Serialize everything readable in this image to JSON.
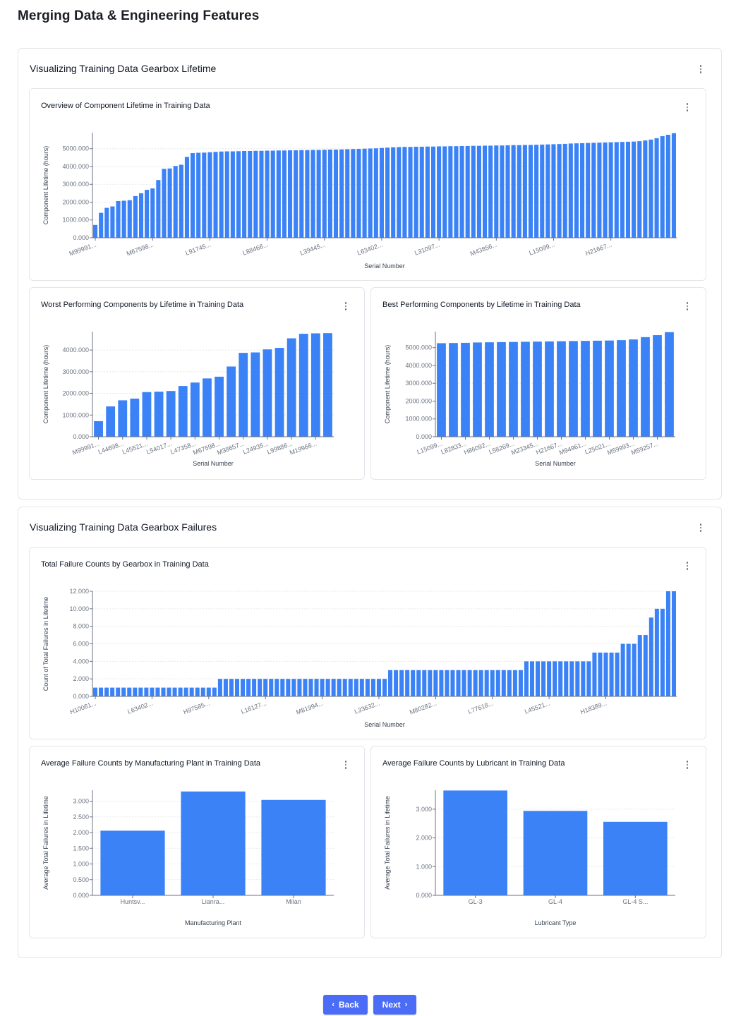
{
  "page": {
    "title": "Merging Data & Engineering Features"
  },
  "sections": [
    {
      "title": "Visualizing Training Data Gearbox Lifetime"
    },
    {
      "title": "Visualizing Training Data Gearbox Failures"
    }
  ],
  "cards": {
    "overview": {
      "title": "Overview of Component Lifetime in Training Data"
    },
    "worst": {
      "title": "Worst Performing Components by Lifetime in Training Data"
    },
    "best": {
      "title": "Best Performing Components by Lifetime in Training Data"
    },
    "failures": {
      "title": "Total Failure Counts by Gearbox in Training Data"
    },
    "plant": {
      "title": "Average Failure Counts by Manufacturing Plant in Training Data"
    },
    "lubricant": {
      "title": "Average Failure Counts by Lubricant in Training Data"
    }
  },
  "nav": {
    "back_label": "Back",
    "next_label": "Next"
  },
  "colors": {
    "bar": "#3b82f6",
    "grid": "#e5e7eb",
    "axis": "#6b7280"
  },
  "chart_data": [
    {
      "id": "overview",
      "type": "bar",
      "title": "Overview of Component Lifetime in Training Data",
      "xlabel": "Serial Number",
      "ylabel": "Component Lifetime (hours)",
      "ylim": [
        0,
        5900
      ],
      "yticks": [
        0,
        1000,
        2000,
        3000,
        4000,
        5000
      ],
      "ytick_labels": [
        "0.000",
        "1000.000",
        "2000.000",
        "3000.000",
        "4000.000",
        "5000.000"
      ],
      "xtick_labels": [
        "M99991...",
        "M67598...",
        "L91745...",
        "L88466...",
        "L39445...",
        "L63402...",
        "L31097...",
        "M43856...",
        "L15099...",
        "H21667..."
      ],
      "xtick_every": 10,
      "values": [
        720,
        1400,
        1680,
        1760,
        2060,
        2080,
        2110,
        2340,
        2500,
        2690,
        2770,
        3240,
        3870,
        3890,
        4030,
        4100,
        4540,
        4750,
        4770,
        4780,
        4800,
        4820,
        4840,
        4850,
        4850,
        4860,
        4870,
        4870,
        4880,
        4880,
        4890,
        4890,
        4900,
        4900,
        4910,
        4910,
        4920,
        4920,
        4930,
        4930,
        4940,
        4950,
        4950,
        4960,
        4970,
        4980,
        4990,
        5000,
        5010,
        5020,
        5040,
        5060,
        5080,
        5090,
        5100,
        5100,
        5110,
        5110,
        5120,
        5120,
        5130,
        5130,
        5140,
        5140,
        5150,
        5150,
        5160,
        5160,
        5170,
        5170,
        5180,
        5180,
        5190,
        5200,
        5200,
        5210,
        5210,
        5220,
        5230,
        5240,
        5250,
        5260,
        5270,
        5290,
        5300,
        5310,
        5320,
        5330,
        5340,
        5350,
        5360,
        5370,
        5380,
        5390,
        5400,
        5420,
        5460,
        5510,
        5590,
        5700,
        5780,
        5870
      ]
    },
    {
      "id": "worst",
      "type": "bar",
      "title": "Worst Performing Components by Lifetime in Training Data",
      "xlabel": "Serial Number",
      "ylabel": "Component Lifetime (hours)",
      "ylim": [
        0,
        4850
      ],
      "yticks": [
        0,
        1000,
        2000,
        3000,
        4000
      ],
      "ytick_labels": [
        "0.000",
        "1000.000",
        "2000.000",
        "3000.000",
        "4000.000"
      ],
      "xtick_labels": [
        "M99991...",
        "L44698...",
        "L45521...",
        "L54017...",
        "L47358...",
        "M67598...",
        "M38657...",
        "L24935...",
        "L99886...",
        "M19966..."
      ],
      "xtick_every": 2,
      "values": [
        720,
        1400,
        1680,
        1760,
        2060,
        2080,
        2110,
        2340,
        2500,
        2690,
        2770,
        3240,
        3870,
        3890,
        4030,
        4100,
        4540,
        4750,
        4770,
        4780
      ]
    },
    {
      "id": "best",
      "type": "bar",
      "title": "Best Performing Components by Lifetime in Training Data",
      "xlabel": "Serial Number",
      "ylabel": "Component Lifetime (hours)",
      "ylim": [
        0,
        5900
      ],
      "yticks": [
        0,
        1000,
        2000,
        3000,
        4000,
        5000
      ],
      "ytick_labels": [
        "0.000",
        "1000.000",
        "2000.000",
        "3000.000",
        "4000.000",
        "5000.000"
      ],
      "xtick_labels": [
        "L15099...",
        "L82833...",
        "H86092...",
        "L58269...",
        "M23345...",
        "H21667...",
        "M94961...",
        "L25021...",
        "M59993...",
        "M59257..."
      ],
      "xtick_every": 2,
      "values": [
        5250,
        5260,
        5270,
        5290,
        5300,
        5310,
        5320,
        5330,
        5340,
        5350,
        5360,
        5370,
        5380,
        5390,
        5400,
        5420,
        5460,
        5590,
        5700,
        5870
      ]
    },
    {
      "id": "failures",
      "type": "bar",
      "title": "Total Failure Counts by Gearbox in Training Data",
      "xlabel": "Serial Number",
      "ylabel": "Count of Total Failures in Lifetime",
      "ylim": [
        0,
        12000
      ],
      "yticks": [
        0,
        2000,
        4000,
        6000,
        8000,
        10000,
        12000
      ],
      "ytick_labels": [
        "0.000",
        "2.000",
        "4.000",
        "6.000",
        "8.000",
        "10.000",
        "12.000"
      ],
      "xtick_labels": [
        "H10061...",
        "L63402...",
        "H97585...",
        "L16127...",
        "M81994...",
        "L33632...",
        "M80282...",
        "L77618...",
        "L45521...",
        "H18389..."
      ],
      "xtick_every": 10,
      "values": [
        1000,
        1000,
        1000,
        1000,
        1000,
        1000,
        1000,
        1000,
        1000,
        1000,
        1000,
        1000,
        1000,
        1000,
        1000,
        1000,
        1000,
        1000,
        1000,
        1000,
        1000,
        1000,
        2000,
        2000,
        2000,
        2000,
        2000,
        2000,
        2000,
        2000,
        2000,
        2000,
        2000,
        2000,
        2000,
        2000,
        2000,
        2000,
        2000,
        2000,
        2000,
        2000,
        2000,
        2000,
        2000,
        2000,
        2000,
        2000,
        2000,
        2000,
        2000,
        2000,
        3000,
        3000,
        3000,
        3000,
        3000,
        3000,
        3000,
        3000,
        3000,
        3000,
        3000,
        3000,
        3000,
        3000,
        3000,
        3000,
        3000,
        3000,
        3000,
        3000,
        3000,
        3000,
        3000,
        3000,
        4000,
        4000,
        4000,
        4000,
        4000,
        4000,
        4000,
        4000,
        4000,
        4000,
        4000,
        4000,
        5000,
        5000,
        5000,
        5000,
        5000,
        6000,
        6000,
        6000,
        7000,
        7000,
        9000,
        10000,
        10000,
        12000,
        12000
      ]
    },
    {
      "id": "plant",
      "type": "bar",
      "title": "Average Failure Counts by Manufacturing Plant in Training Data",
      "xlabel": "Manufacturing Plant",
      "ylabel": "Average Total Failures in Lifetime",
      "ylim": [
        0,
        3350
      ],
      "yticks": [
        0,
        500,
        1000,
        1500,
        2000,
        2500,
        3000
      ],
      "ytick_labels": [
        "0.000",
        "0.500",
        "1.000",
        "1.500",
        "2.000",
        "2.500",
        "3.000"
      ],
      "categories": [
        "Huntsv...",
        "Lianra...",
        "Milan"
      ],
      "values": [
        2060,
        3310,
        3040
      ]
    },
    {
      "id": "lubricant",
      "type": "bar",
      "title": "Average Failure Counts by Lubricant in Training Data",
      "xlabel": "Lubricant Type",
      "ylabel": "Average Total Failures in Lifetime",
      "ylim": [
        0,
        3660
      ],
      "yticks": [
        0,
        1000,
        2000,
        3000
      ],
      "ytick_labels": [
        "0.000",
        "1.000",
        "2.000",
        "3.000"
      ],
      "categories": [
        "GL-3",
        "GL-4",
        "GL-4 S..."
      ],
      "values": [
        3650,
        2940,
        2560
      ]
    }
  ]
}
